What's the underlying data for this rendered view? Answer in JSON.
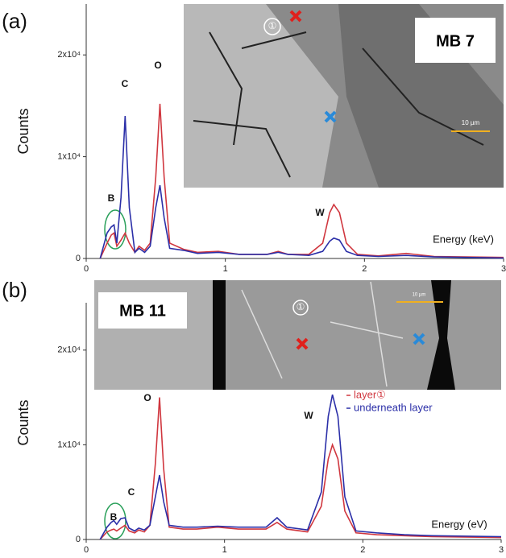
{
  "chart_data": [
    {
      "type": "line",
      "panel_label": "(a)",
      "x_label": "Energy (keV)",
      "y_label": "Counts",
      "image_label": "MB 7",
      "site_label": "①",
      "scale_bar": "10 µm",
      "annotations": [
        "B",
        "C",
        "O",
        "W"
      ],
      "xlim": [
        0,
        3
      ],
      "xticks": [
        0,
        1,
        2,
        3
      ],
      "ylim": [
        0,
        25000
      ],
      "yticks": [
        0,
        {
          "value": 10000,
          "label": "1x10⁴"
        },
        {
          "value": 20000,
          "label": "2x10⁴"
        }
      ],
      "x": [
        0.1,
        0.15,
        0.18,
        0.2,
        0.22,
        0.25,
        0.28,
        0.31,
        0.35,
        0.38,
        0.42,
        0.46,
        0.5,
        0.53,
        0.56,
        0.6,
        0.7,
        0.8,
        0.95,
        1.1,
        1.3,
        1.38,
        1.45,
        1.6,
        1.7,
        1.75,
        1.78,
        1.82,
        1.87,
        1.95,
        2.1,
        2.3,
        2.5,
        3.0
      ],
      "series": [
        {
          "color": "#d0373f",
          "values": [
            0,
            1500,
            2300,
            2500,
            1200,
            1800,
            2500,
            1500,
            600,
            1200,
            800,
            1500,
            8000,
            15200,
            8000,
            1500,
            900,
            600,
            700,
            400,
            400,
            700,
            400,
            400,
            1500,
            4500,
            5300,
            4500,
            1500,
            400,
            250,
            500,
            200,
            100
          ]
        },
        {
          "color": "#2b2fa8",
          "values": [
            0,
            2500,
            3100,
            3300,
            1500,
            6000,
            14000,
            5000,
            600,
            1000,
            600,
            1200,
            5000,
            7200,
            4000,
            1000,
            800,
            500,
            600,
            400,
            400,
            600,
            400,
            300,
            700,
            1700,
            2000,
            1800,
            700,
            300,
            200,
            300,
            150,
            50
          ]
        }
      ]
    },
    {
      "type": "line",
      "panel_label": "(b)",
      "x_label": "Energy (eV)",
      "y_label": "Counts",
      "image_label": "MB 11",
      "site_label": "①",
      "scale_bar": "10 µm",
      "annotations": [
        "B",
        "C",
        "O",
        "W"
      ],
      "xlim": [
        0,
        3
      ],
      "xticks": [
        0,
        1,
        2,
        3
      ],
      "ylim": [
        0,
        25000
      ],
      "yticks": [
        0,
        {
          "value": 10000,
          "label": "1x10⁴"
        },
        {
          "value": 20000,
          "label": "2x10⁴"
        }
      ],
      "x": [
        0.1,
        0.15,
        0.18,
        0.2,
        0.22,
        0.25,
        0.28,
        0.31,
        0.35,
        0.38,
        0.42,
        0.46,
        0.5,
        0.53,
        0.56,
        0.6,
        0.7,
        0.8,
        0.95,
        1.1,
        1.3,
        1.38,
        1.45,
        1.6,
        1.7,
        1.75,
        1.78,
        1.82,
        1.87,
        1.95,
        2.1,
        2.3,
        2.5,
        3.0
      ],
      "series": [
        {
          "name": "layer①",
          "color": "#d0373f",
          "values": [
            0,
            800,
            1000,
            1100,
            900,
            1200,
            1500,
            900,
            700,
            1000,
            800,
            1500,
            8000,
            15000,
            7500,
            1300,
            1100,
            1100,
            1300,
            1100,
            1100,
            1800,
            1100,
            800,
            3500,
            8500,
            10000,
            8500,
            3000,
            700,
            500,
            400,
            300,
            200
          ]
        },
        {
          "name": "underneath layer",
          "color": "#2b2fa8",
          "values": [
            0,
            1300,
            1800,
            2000,
            1600,
            2200,
            2300,
            1200,
            900,
            1200,
            1000,
            1500,
            4500,
            6800,
            4000,
            1500,
            1300,
            1300,
            1400,
            1300,
            1300,
            2300,
            1300,
            1000,
            5000,
            13000,
            15300,
            13000,
            4500,
            900,
            700,
            500,
            400,
            300
          ]
        }
      ]
    }
  ]
}
